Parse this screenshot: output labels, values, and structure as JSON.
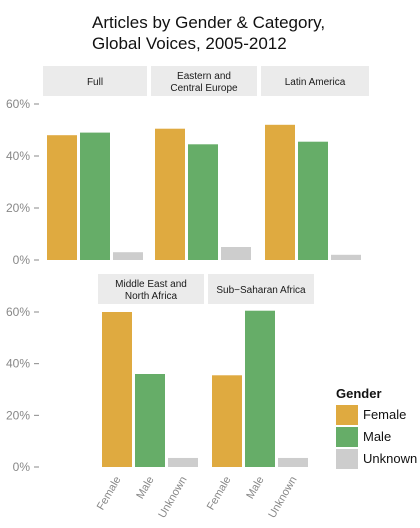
{
  "title_line1": "Articles by Gender & Category,",
  "title_line2": "Global Voices, 2005-2012",
  "chart_data": {
    "type": "bar",
    "title": "Articles by Gender & Category, Global Voices, 2005-2012",
    "categories": [
      "Female",
      "Male",
      "Unknown"
    ],
    "y_ticks": [
      "0%",
      "20%",
      "40%",
      "60%"
    ],
    "ylim": [
      0,
      65
    ],
    "grid": false,
    "legend": {
      "title": "Gender",
      "position": "right",
      "entries": [
        "Female",
        "Male",
        "Unknown"
      ]
    },
    "colors": {
      "Female": "#DFAA40",
      "Male": "#66AD68",
      "Unknown": "#CDCDCD",
      "strip": "#EBEBEB"
    },
    "panels": [
      {
        "label": [
          "Full"
        ],
        "values": [
          48,
          49,
          3
        ]
      },
      {
        "label": [
          "Eastern and",
          "Central Europe"
        ],
        "values": [
          50.5,
          44.5,
          5
        ]
      },
      {
        "label": [
          "Latin America"
        ],
        "values": [
          52,
          45.5,
          2
        ]
      },
      {
        "label": [
          "Middle East and",
          "North Africa"
        ],
        "values": [
          60,
          36,
          3.5
        ]
      },
      {
        "label": [
          "Sub−Saharan Africa"
        ],
        "values": [
          35.5,
          60.5,
          3.5
        ]
      }
    ]
  }
}
